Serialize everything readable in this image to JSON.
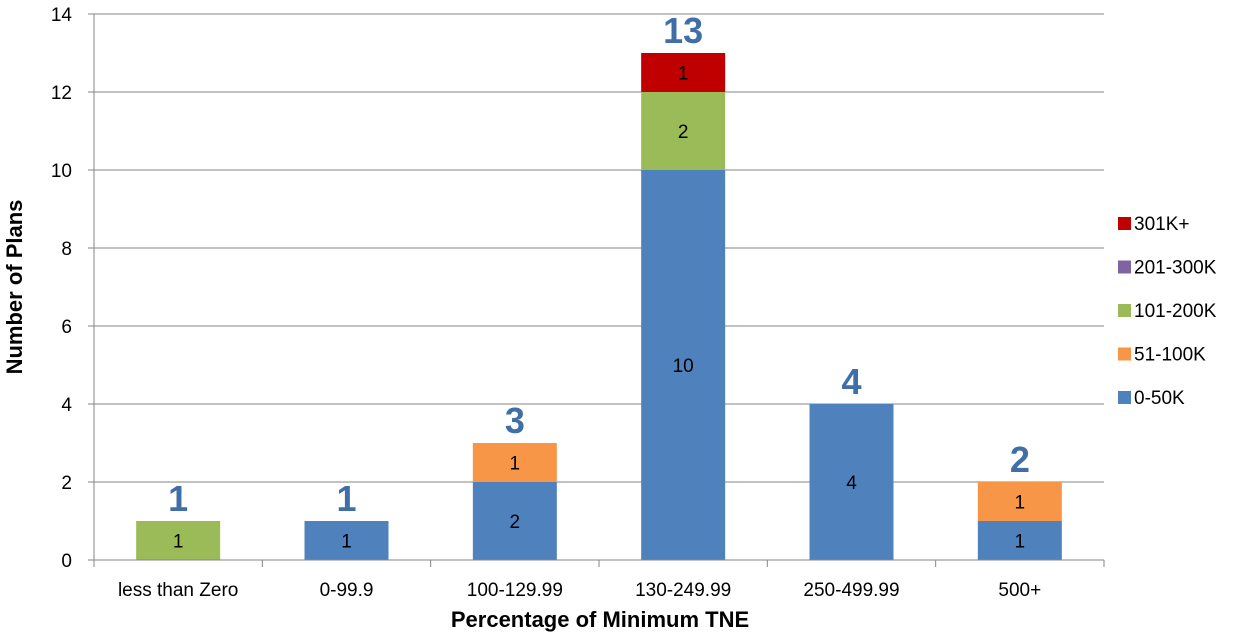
{
  "chart_data": {
    "type": "bar",
    "stacked": true,
    "categories": [
      "less than Zero",
      "0-99.9",
      "100-129.99",
      "130-249.99",
      "250-499.99",
      "500+"
    ],
    "series": [
      {
        "name": "0-50K",
        "color": "#4f81bd",
        "values": [
          0,
          1,
          2,
          10,
          4,
          1
        ]
      },
      {
        "name": "51-100K",
        "color": "#f79646",
        "values": [
          0,
          0,
          1,
          0,
          0,
          1
        ]
      },
      {
        "name": "101-200K",
        "color": "#9bbb59",
        "values": [
          1,
          0,
          0,
          2,
          0,
          0
        ]
      },
      {
        "name": "201-300K",
        "color": "#8064a2",
        "values": [
          0,
          0,
          0,
          0,
          0,
          0
        ]
      },
      {
        "name": "301K+",
        "color": "#c00000",
        "values": [
          0,
          0,
          0,
          1,
          0,
          0
        ]
      }
    ],
    "totals": [
      1,
      1,
      3,
      13,
      4,
      2
    ],
    "xlabel": "Percentage of Minimum TNE",
    "ylabel": "Number of Plans",
    "ylim": [
      0,
      14
    ],
    "yticks": [
      0,
      2,
      4,
      6,
      8,
      10,
      12,
      14
    ],
    "grid": true,
    "legend_position": "right",
    "legend_order": [
      "301K+",
      "201-300K",
      "101-200K",
      "51-100K",
      "0-50K"
    ],
    "total_label_color": "#3f6fa6"
  }
}
